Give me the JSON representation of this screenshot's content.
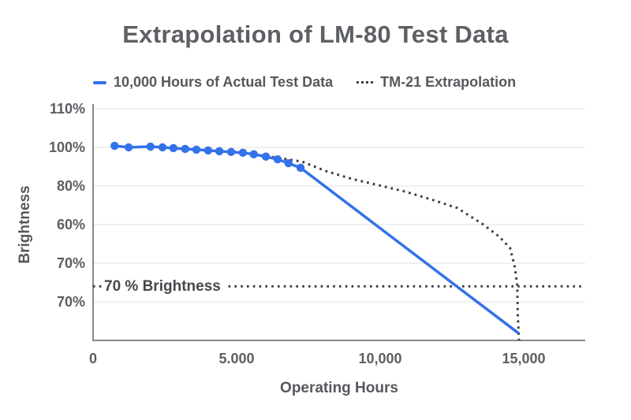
{
  "chart_data": {
    "type": "line",
    "title": "Extrapolation of LM-80 Test Data",
    "xlabel": "Operating Hours",
    "ylabel": "Brightness",
    "grid": true,
    "legend_position": "top",
    "x_tick_labels": [
      "0",
      "5.000",
      "10,000",
      "15,000"
    ],
    "x_tick_values": [
      0,
      5000,
      10000,
      15000
    ],
    "xlim": [
      0,
      17150
    ],
    "y_tick_labels": [
      "110%",
      "100%",
      "80%",
      "60%",
      "70%",
      "70%"
    ],
    "ylim_visual": [
      50,
      110
    ],
    "colors": {
      "actual": "#3372e8",
      "extrapolation": "#3c4043",
      "grid": "#e9ebed",
      "axis": "#84898e",
      "text": "#5b5e62",
      "title": "#5d6064"
    },
    "series": [
      {
        "name": "10,000 Hours of Actual Test Data",
        "style": "solid",
        "color": "#3372e8",
        "markers_through": 16,
        "points": [
          [
            750,
            100.4
          ],
          [
            1240,
            100.0
          ],
          [
            2000,
            100.2
          ],
          [
            2420,
            100.0
          ],
          [
            2800,
            99.8
          ],
          [
            3210,
            99.6
          ],
          [
            3600,
            99.4
          ],
          [
            4010,
            99.2
          ],
          [
            4400,
            99.0
          ],
          [
            4810,
            98.8
          ],
          [
            5220,
            98.6
          ],
          [
            5600,
            98.2
          ],
          [
            6020,
            97.6
          ],
          [
            6430,
            96.9
          ],
          [
            6810,
            95.9
          ],
          [
            7230,
            94.7
          ],
          [
            14800,
            52.0
          ]
        ]
      },
      {
        "name": "TM-21 Extrapolation",
        "style": "dotted",
        "color": "#3c4043",
        "points": [
          [
            5600,
            98.2
          ],
          [
            6430,
            97.3
          ],
          [
            7280,
            96.3
          ],
          [
            8100,
            93.9
          ],
          [
            9040,
            91.8
          ],
          [
            9950,
            90.2
          ],
          [
            10850,
            88.6
          ],
          [
            11790,
            86.5
          ],
          [
            12690,
            84.3
          ],
          [
            13600,
            80.0
          ],
          [
            14150,
            76.9
          ],
          [
            14530,
            73.9
          ],
          [
            14700,
            68.8
          ],
          [
            14780,
            64.1
          ],
          [
            14800,
            56.5
          ],
          [
            14840,
            50.0
          ]
        ]
      }
    ],
    "annotation": {
      "label": "70 % Brightness",
      "y_visual": 64,
      "style": "dotted"
    }
  }
}
